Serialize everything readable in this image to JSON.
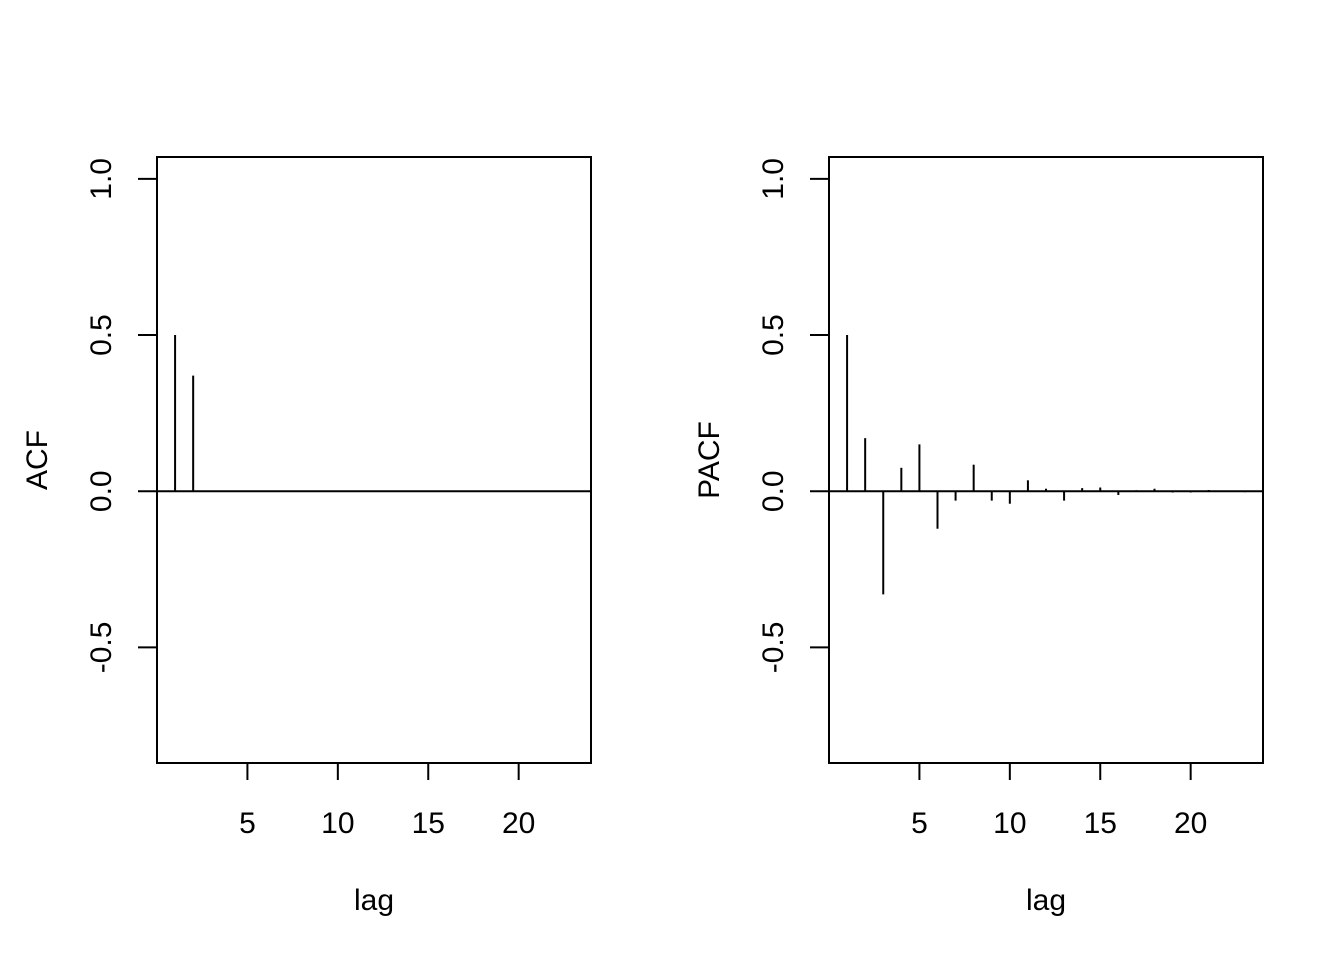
{
  "chart_data": [
    {
      "type": "bar",
      "subtype": "correlogram",
      "title": "",
      "xlabel": "lag",
      "ylabel": "ACF",
      "xlim": [
        0,
        24
      ],
      "ylim": [
        -0.87,
        1.07
      ],
      "x_ticks": [
        5,
        10,
        15,
        20
      ],
      "x_tick_labels": [
        "5",
        "10",
        "15",
        "20"
      ],
      "y_ticks": [
        -0.5,
        0.0,
        0.5,
        1.0
      ],
      "y_tick_labels": [
        "-0.5",
        "0.0",
        "0.5",
        "1.0"
      ],
      "horizontal_line": 0,
      "grid": false,
      "lags": [
        1,
        2,
        3,
        4,
        5,
        6,
        7,
        8,
        9,
        10,
        11,
        12,
        13,
        14,
        15,
        16,
        17,
        18,
        19,
        20,
        21,
        22,
        23
      ],
      "values": [
        0.5,
        0.37,
        0,
        0,
        0,
        0,
        0,
        0,
        0,
        0,
        0,
        0,
        0,
        0,
        0,
        0,
        0,
        0,
        0,
        0,
        0,
        0,
        0
      ]
    },
    {
      "type": "bar",
      "subtype": "correlogram",
      "title": "",
      "xlabel": "lag",
      "ylabel": "PACF",
      "xlim": [
        0,
        24
      ],
      "ylim": [
        -0.87,
        1.07
      ],
      "x_ticks": [
        5,
        10,
        15,
        20
      ],
      "x_tick_labels": [
        "5",
        "10",
        "15",
        "20"
      ],
      "y_ticks": [
        -0.5,
        0.0,
        0.5,
        1.0
      ],
      "y_tick_labels": [
        "-0.5",
        "0.0",
        "0.5",
        "1.0"
      ],
      "horizontal_line": 0,
      "grid": false,
      "lags": [
        1,
        2,
        3,
        4,
        5,
        6,
        7,
        8,
        9,
        10,
        11,
        12,
        13,
        14,
        15,
        16,
        17,
        18,
        19,
        20,
        21,
        22,
        23
      ],
      "values": [
        0.5,
        0.17,
        -0.33,
        0.075,
        0.15,
        -0.12,
        -0.03,
        0.085,
        -0.03,
        -0.04,
        0.035,
        0.008,
        -0.03,
        0.01,
        0.012,
        -0.012,
        0.003,
        0.008,
        -0.004,
        -0.004,
        0.004,
        0.002,
        -0.003
      ]
    }
  ]
}
